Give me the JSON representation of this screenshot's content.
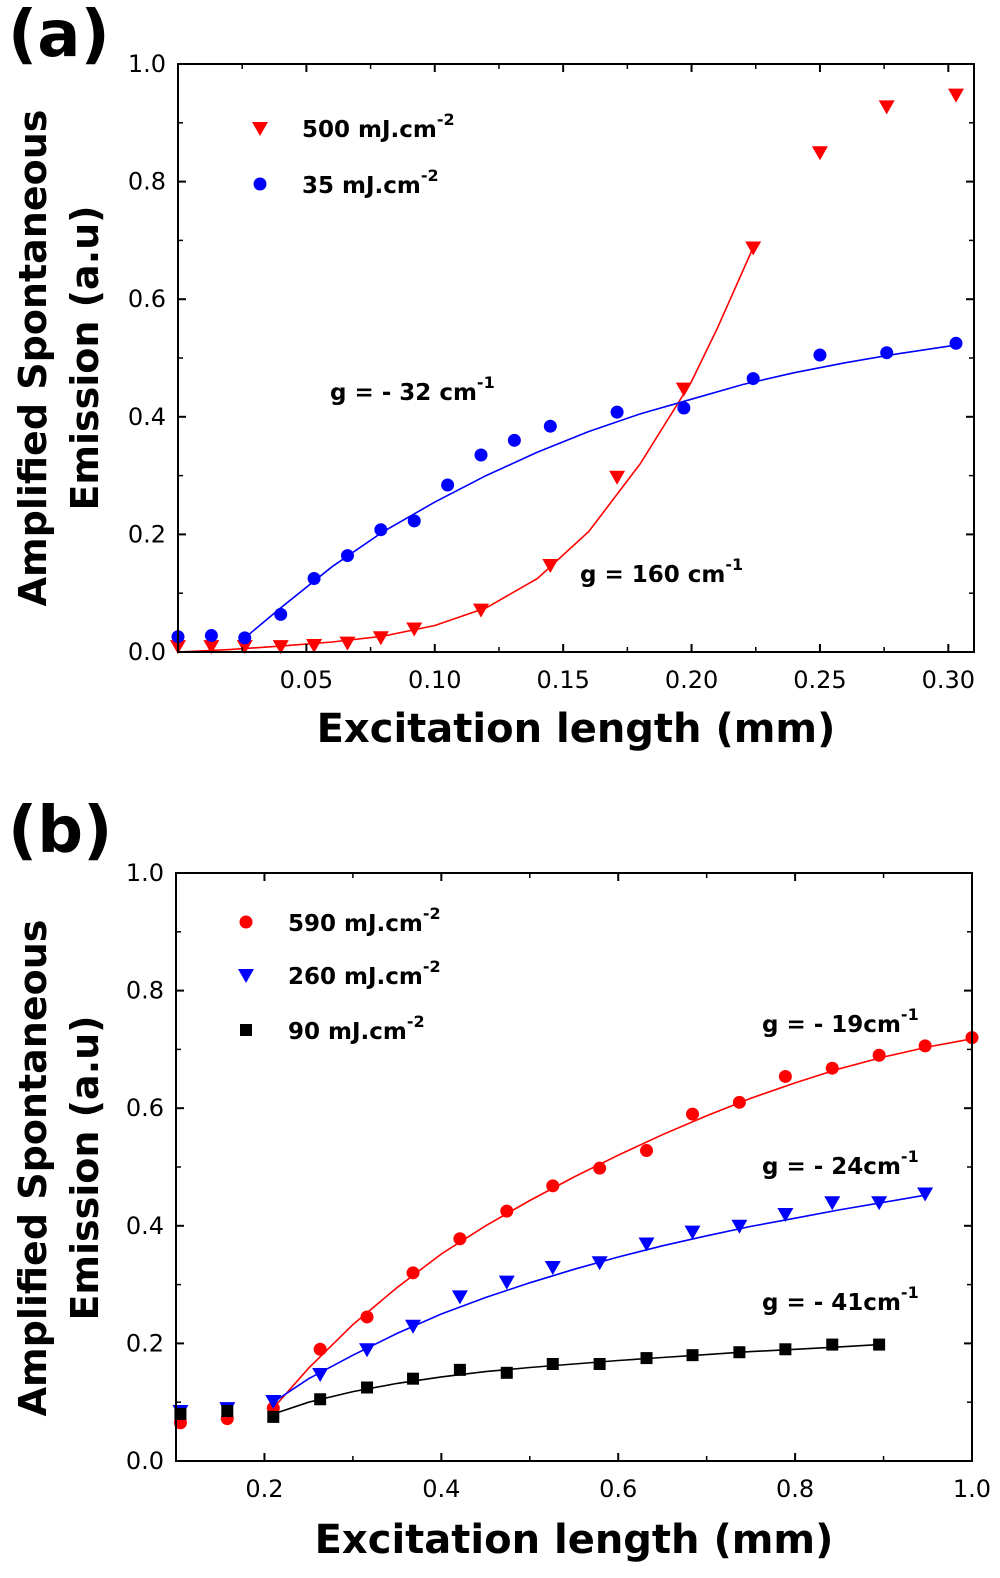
{
  "chart_data": [
    {
      "type": "scatter",
      "panel_label": "(a)",
      "xlabel": "Excitation length (mm)",
      "ylabel_line1": "Amplified Spontaneous",
      "ylabel_line2": "Emission (a.u)",
      "xlim": [
        0.0,
        0.31
      ],
      "ylim": [
        0.0,
        1.0
      ],
      "xticks": [
        0.05,
        0.1,
        0.15,
        0.2,
        0.25,
        0.3
      ],
      "xtick_labels": [
        "0.05",
        "0.10",
        "0.15",
        "0.20",
        "0.25",
        "0.30"
      ],
      "yticks": [
        0.0,
        0.2,
        0.4,
        0.6,
        0.8,
        1.0
      ],
      "ytick_labels": [
        "0.0",
        "0.2",
        "0.4",
        "0.6",
        "0.8",
        "1.0"
      ],
      "series": [
        {
          "name": "500 mJ.cm-2",
          "legend_main": "500 mJ.cm",
          "legend_sup": "-2",
          "marker": "triangle-down",
          "color": "#ff0000",
          "x": [
            0.0,
            0.013,
            0.026,
            0.04,
            0.053,
            0.066,
            0.079,
            0.092,
            0.118,
            0.145,
            0.171,
            0.197,
            0.224,
            0.25,
            0.276,
            0.303
          ],
          "y": [
            0.01,
            0.01,
            0.01,
            0.01,
            0.012,
            0.016,
            0.025,
            0.04,
            0.072,
            0.148,
            0.298,
            0.448,
            0.688,
            0.85,
            0.928,
            0.948
          ]
        },
        {
          "name": "35 mJ.cm-2",
          "legend_main": "35 mJ.cm",
          "legend_sup": "-2",
          "marker": "circle",
          "color": "#0000ff",
          "x": [
            0.0,
            0.013,
            0.026,
            0.04,
            0.053,
            0.066,
            0.079,
            0.092,
            0.105,
            0.118,
            0.131,
            0.145,
            0.171,
            0.197,
            0.224,
            0.25,
            0.276,
            0.303
          ],
          "y": [
            0.026,
            0.028,
            0.024,
            0.064,
            0.125,
            0.164,
            0.208,
            0.223,
            0.284,
            0.335,
            0.36,
            0.384,
            0.408,
            0.415,
            0.465,
            0.505,
            0.509,
            0.525
          ]
        }
      ],
      "fits": [
        {
          "label": "g = 160 cm-1",
          "color": "#ff0000",
          "x": [
            0.0,
            0.02,
            0.04,
            0.06,
            0.08,
            0.1,
            0.12,
            0.14,
            0.16,
            0.18,
            0.2,
            0.21,
            0.224
          ],
          "y": [
            0.0,
            0.004,
            0.01,
            0.017,
            0.027,
            0.045,
            0.075,
            0.125,
            0.205,
            0.32,
            0.46,
            0.55,
            0.688
          ]
        },
        {
          "label": "g = - 32 cm-1",
          "color": "#0000ff",
          "x": [
            0.026,
            0.04,
            0.06,
            0.08,
            0.1,
            0.12,
            0.14,
            0.16,
            0.18,
            0.2,
            0.22,
            0.24,
            0.26,
            0.28,
            0.303
          ],
          "y": [
            0.024,
            0.075,
            0.145,
            0.205,
            0.255,
            0.3,
            0.34,
            0.375,
            0.405,
            0.43,
            0.455,
            0.475,
            0.492,
            0.507,
            0.522
          ]
        }
      ],
      "annotations": [
        {
          "main": "g = - 32 cm",
          "sup": "-1"
        },
        {
          "main": "g = 160 cm",
          "sup": "-1"
        }
      ]
    },
    {
      "type": "scatter",
      "panel_label": "(b)",
      "xlabel": "Excitation length (mm)",
      "ylabel_line1": "Amplified Spontaneous",
      "ylabel_line2": "Emission (a.u)",
      "xlim": [
        0.1,
        1.0
      ],
      "ylim": [
        0.0,
        1.0
      ],
      "xticks": [
        0.2,
        0.4,
        0.6,
        0.8,
        1.0
      ],
      "xtick_labels": [
        "0.2",
        "0.4",
        "0.6",
        "0.8",
        "1.0"
      ],
      "yticks": [
        0.0,
        0.2,
        0.4,
        0.6,
        0.8,
        1.0
      ],
      "ytick_labels": [
        "0.0",
        "0.2",
        "0.4",
        "0.6",
        "0.8",
        "1.0"
      ],
      "series": [
        {
          "name": "590 mJ.cm-2",
          "legend_main": "590 mJ.cm",
          "legend_sup": "-2",
          "marker": "circle",
          "color": "#ff0000",
          "x": [
            0.105,
            0.158,
            0.21,
            0.263,
            0.316,
            0.368,
            0.421,
            0.474,
            0.526,
            0.579,
            0.632,
            0.684,
            0.737,
            0.789,
            0.842,
            0.895,
            0.947,
            1.0
          ],
          "y": [
            0.065,
            0.072,
            0.09,
            0.19,
            0.245,
            0.32,
            0.378,
            0.425,
            0.468,
            0.498,
            0.528,
            0.59,
            0.61,
            0.654,
            0.668,
            0.69,
            0.706,
            0.72
          ]
        },
        {
          "name": "260 mJ.cm-2",
          "legend_main": "260 mJ.cm",
          "legend_sup": "-2",
          "marker": "triangle-down",
          "color": "#0000ff",
          "x": [
            0.105,
            0.158,
            0.21,
            0.263,
            0.316,
            0.368,
            0.421,
            0.474,
            0.526,
            0.579,
            0.632,
            0.684,
            0.737,
            0.789,
            0.842,
            0.895,
            0.947
          ],
          "y": [
            0.085,
            0.09,
            0.102,
            0.148,
            0.19,
            0.23,
            0.28,
            0.305,
            0.33,
            0.338,
            0.37,
            0.39,
            0.4,
            0.42,
            0.44,
            0.44,
            0.455
          ]
        },
        {
          "name": "90 mJ.cm-2",
          "legend_main": "90 mJ.cm",
          "legend_sup": "-2",
          "marker": "square",
          "color": "#000000",
          "x": [
            0.105,
            0.158,
            0.21,
            0.263,
            0.316,
            0.368,
            0.421,
            0.474,
            0.526,
            0.579,
            0.632,
            0.684,
            0.737,
            0.789,
            0.842,
            0.895
          ],
          "y": [
            0.08,
            0.085,
            0.075,
            0.105,
            0.125,
            0.14,
            0.155,
            0.15,
            0.165,
            0.165,
            0.175,
            0.18,
            0.185,
            0.19,
            0.198,
            0.198
          ]
        }
      ],
      "fits": [
        {
          "label": "g = - 19cm-1",
          "color": "#ff0000",
          "x": [
            0.21,
            0.25,
            0.3,
            0.35,
            0.4,
            0.45,
            0.5,
            0.55,
            0.6,
            0.65,
            0.7,
            0.75,
            0.8,
            0.85,
            0.9,
            0.95,
            1.0
          ],
          "y": [
            0.09,
            0.158,
            0.232,
            0.295,
            0.352,
            0.4,
            0.443,
            0.483,
            0.52,
            0.555,
            0.587,
            0.617,
            0.643,
            0.667,
            0.687,
            0.704,
            0.718
          ]
        },
        {
          "label": "g = - 24cm-1",
          "color": "#0000ff",
          "x": [
            0.21,
            0.25,
            0.3,
            0.35,
            0.4,
            0.45,
            0.5,
            0.55,
            0.6,
            0.65,
            0.7,
            0.75,
            0.8,
            0.85,
            0.9,
            0.947
          ],
          "y": [
            0.1,
            0.14,
            0.18,
            0.217,
            0.25,
            0.278,
            0.303,
            0.326,
            0.347,
            0.366,
            0.383,
            0.399,
            0.413,
            0.427,
            0.44,
            0.452
          ]
        },
        {
          "label": "g = - 41cm-1",
          "color": "#000000",
          "x": [
            0.21,
            0.25,
            0.3,
            0.35,
            0.4,
            0.45,
            0.5,
            0.55,
            0.6,
            0.65,
            0.7,
            0.75,
            0.8,
            0.85,
            0.895
          ],
          "y": [
            0.08,
            0.1,
            0.118,
            0.132,
            0.143,
            0.152,
            0.159,
            0.165,
            0.171,
            0.176,
            0.181,
            0.186,
            0.19,
            0.194,
            0.198
          ]
        }
      ],
      "annotations": [
        {
          "main": "g = - 19cm",
          "sup": "-1"
        },
        {
          "main": "g = - 24cm",
          "sup": "-1"
        },
        {
          "main": "g = - 41cm",
          "sup": "-1"
        }
      ]
    }
  ]
}
